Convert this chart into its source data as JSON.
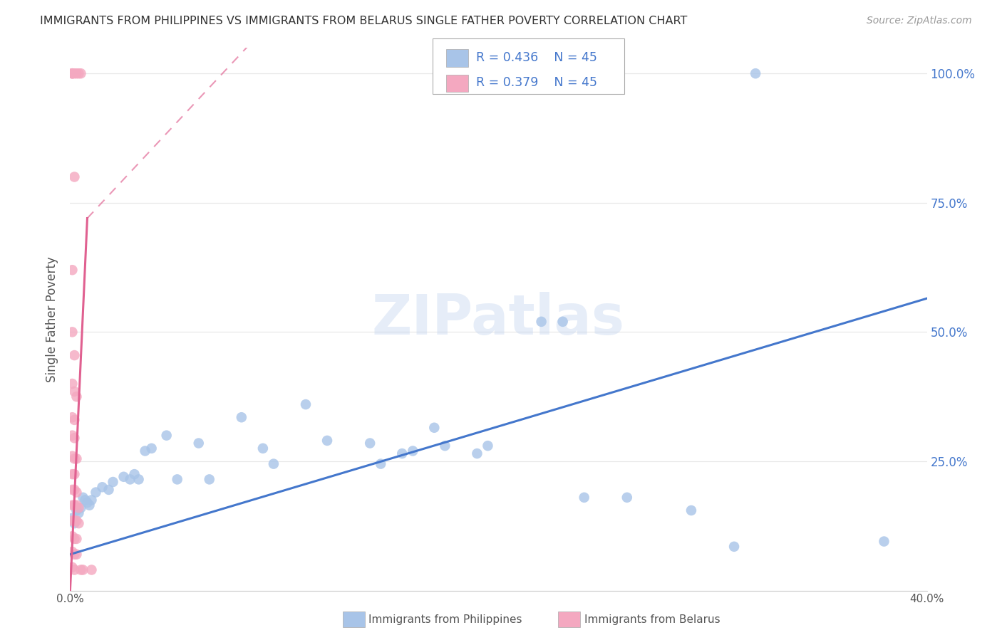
{
  "title": "IMMIGRANTS FROM PHILIPPINES VS IMMIGRANTS FROM BELARUS SINGLE FATHER POVERTY CORRELATION CHART",
  "source": "Source: ZipAtlas.com",
  "ylabel": "Single Father Poverty",
  "legend_label_blue": "Immigrants from Philippines",
  "legend_label_pink": "Immigrants from Belarus",
  "blue_color": "#a8c4e8",
  "pink_color": "#f4a8c0",
  "blue_line_color": "#4477cc",
  "pink_line_color": "#e06090",
  "blue_scatter": [
    [
      0.001,
      0.14
    ],
    [
      0.002,
      0.13
    ],
    [
      0.003,
      0.155
    ],
    [
      0.004,
      0.15
    ],
    [
      0.005,
      0.16
    ],
    [
      0.006,
      0.18
    ],
    [
      0.007,
      0.175
    ],
    [
      0.008,
      0.17
    ],
    [
      0.009,
      0.165
    ],
    [
      0.01,
      0.175
    ],
    [
      0.012,
      0.19
    ],
    [
      0.015,
      0.2
    ],
    [
      0.018,
      0.195
    ],
    [
      0.02,
      0.21
    ],
    [
      0.025,
      0.22
    ],
    [
      0.028,
      0.215
    ],
    [
      0.03,
      0.225
    ],
    [
      0.032,
      0.215
    ],
    [
      0.035,
      0.27
    ],
    [
      0.038,
      0.275
    ],
    [
      0.045,
      0.3
    ],
    [
      0.05,
      0.215
    ],
    [
      0.06,
      0.285
    ],
    [
      0.065,
      0.215
    ],
    [
      0.08,
      0.335
    ],
    [
      0.09,
      0.275
    ],
    [
      0.095,
      0.245
    ],
    [
      0.11,
      0.36
    ],
    [
      0.12,
      0.29
    ],
    [
      0.14,
      0.285
    ],
    [
      0.145,
      0.245
    ],
    [
      0.155,
      0.265
    ],
    [
      0.16,
      0.27
    ],
    [
      0.17,
      0.315
    ],
    [
      0.175,
      0.28
    ],
    [
      0.19,
      0.265
    ],
    [
      0.195,
      0.28
    ],
    [
      0.22,
      0.52
    ],
    [
      0.23,
      0.52
    ],
    [
      0.24,
      0.18
    ],
    [
      0.26,
      0.18
    ],
    [
      0.29,
      0.155
    ],
    [
      0.31,
      0.085
    ],
    [
      0.32,
      1.0
    ],
    [
      0.38,
      0.095
    ]
  ],
  "pink_scatter": [
    [
      0.001,
      1.0
    ],
    [
      0.001,
      1.0
    ],
    [
      0.001,
      1.0
    ],
    [
      0.002,
      1.0
    ],
    [
      0.003,
      1.0
    ],
    [
      0.004,
      1.0
    ],
    [
      0.005,
      1.0
    ],
    [
      0.002,
      0.8
    ],
    [
      0.001,
      0.62
    ],
    [
      0.001,
      0.5
    ],
    [
      0.002,
      0.455
    ],
    [
      0.001,
      0.4
    ],
    [
      0.002,
      0.385
    ],
    [
      0.003,
      0.375
    ],
    [
      0.001,
      0.335
    ],
    [
      0.002,
      0.33
    ],
    [
      0.001,
      0.3
    ],
    [
      0.002,
      0.295
    ],
    [
      0.001,
      0.26
    ],
    [
      0.002,
      0.255
    ],
    [
      0.003,
      0.255
    ],
    [
      0.001,
      0.225
    ],
    [
      0.002,
      0.225
    ],
    [
      0.001,
      0.195
    ],
    [
      0.002,
      0.195
    ],
    [
      0.003,
      0.19
    ],
    [
      0.001,
      0.165
    ],
    [
      0.002,
      0.165
    ],
    [
      0.003,
      0.165
    ],
    [
      0.004,
      0.16
    ],
    [
      0.001,
      0.135
    ],
    [
      0.002,
      0.135
    ],
    [
      0.003,
      0.135
    ],
    [
      0.004,
      0.13
    ],
    [
      0.001,
      0.105
    ],
    [
      0.002,
      0.1
    ],
    [
      0.003,
      0.1
    ],
    [
      0.001,
      0.075
    ],
    [
      0.002,
      0.07
    ],
    [
      0.003,
      0.07
    ],
    [
      0.001,
      0.045
    ],
    [
      0.002,
      0.04
    ],
    [
      0.005,
      0.04
    ],
    [
      0.006,
      0.04
    ],
    [
      0.01,
      0.04
    ]
  ],
  "xlim": [
    0.0,
    0.4
  ],
  "ylim": [
    0.0,
    1.05
  ],
  "xticks": [
    0.0,
    0.05,
    0.1,
    0.15,
    0.2,
    0.25,
    0.3,
    0.35,
    0.4
  ],
  "yticks": [
    0.0,
    0.25,
    0.5,
    0.75,
    1.0
  ],
  "left_ytick_labels": [
    "",
    "",
    "",
    "",
    ""
  ],
  "right_ytick_labels": [
    "",
    "25.0%",
    "50.0%",
    "75.0%",
    "100.0%"
  ],
  "xtick_labels": [
    "0.0%",
    "",
    "",
    "",
    "",
    "",
    "",
    "",
    "40.0%"
  ],
  "watermark": "ZIPatlas",
  "background_color": "#ffffff",
  "grid_color": "#e8e8e8",
  "blue_trend": [
    0.0,
    0.07,
    0.4,
    0.565
  ],
  "pink_trend_solid": [
    0.0,
    0.0,
    0.008,
    0.72
  ],
  "pink_trend_dash": [
    0.008,
    0.72,
    0.15,
    1.35
  ]
}
